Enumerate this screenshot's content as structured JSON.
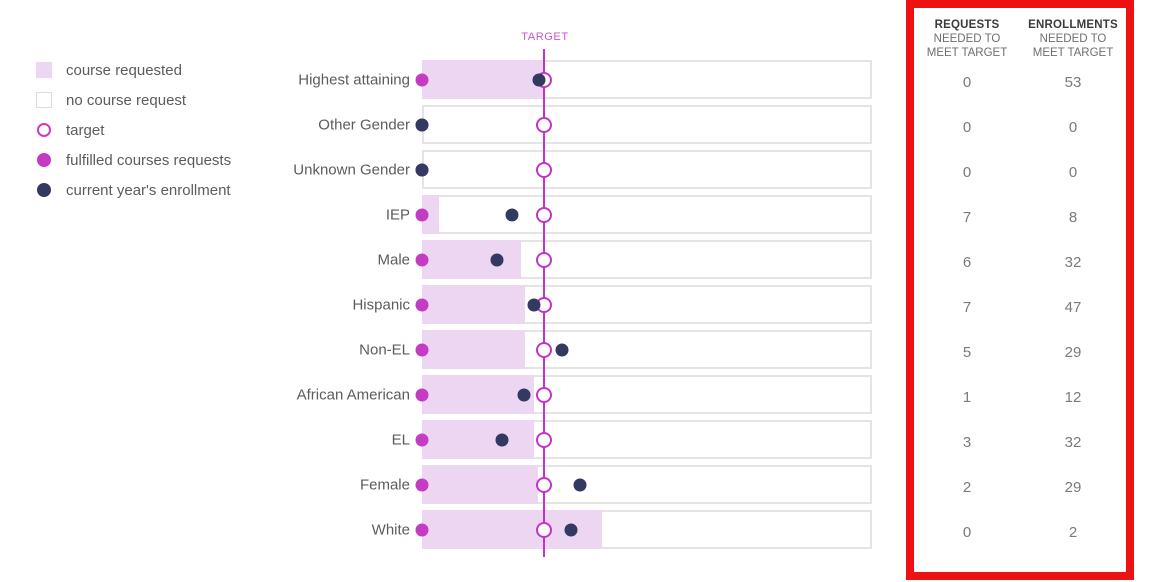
{
  "legend": {
    "items": [
      {
        "label": "course requested",
        "swatch": "square-filled"
      },
      {
        "label": "no course request",
        "swatch": "square-empty"
      },
      {
        "label": "target",
        "swatch": "circle-outline"
      },
      {
        "label": "fulfilled courses requests",
        "swatch": "circle-magenta"
      },
      {
        "label": "current year's enrollment",
        "swatch": "circle-navy"
      }
    ]
  },
  "chart_data": {
    "type": "bar",
    "orientation": "horizontal",
    "target_label": "TARGET",
    "target_pct": 27.2,
    "x_axis": {
      "min": 0,
      "max": 100,
      "unit": "percent-of-bar-width",
      "ticks_visible": false
    },
    "categories": [
      "Highest attaining",
      "Other Gender",
      "Unknown Gender",
      "IEP",
      "Male",
      "Hispanic",
      "Non-EL",
      "African American",
      "EL",
      "Female",
      "White"
    ],
    "series": [
      {
        "name": "course requested",
        "values_pct": [
          27.2,
          0,
          0,
          3.8,
          22.0,
          22.9,
          22.9,
          24.9,
          24.9,
          25.8,
          39.9
        ]
      },
      {
        "name": "fulfilled courses requests",
        "values_pct": [
          0,
          0,
          0,
          0,
          0,
          0,
          0,
          0,
          0,
          0,
          0
        ]
      },
      {
        "name": "current year's enrollment",
        "values_pct": [
          26.1,
          0,
          0,
          20.0,
          16.7,
          24.9,
          31.0,
          22.7,
          17.8,
          35.0,
          33.0
        ]
      }
    ],
    "requests_needed_to_meet_target": [
      "0",
      "0",
      "0",
      "7",
      "6",
      "7",
      "5",
      "1",
      "3",
      "2",
      "0"
    ],
    "enrollments_needed_to_meet_target": [
      "53",
      "0",
      "0",
      "8",
      "32",
      "47",
      "29",
      "12",
      "32",
      "29",
      "2"
    ],
    "legend_position": "top-left",
    "grid": false
  },
  "summary_table": {
    "columns": [
      {
        "line1": "REQUESTS",
        "line2": "NEEDED TO",
        "line3": "MEET TARGET"
      },
      {
        "line1": "ENROLLMENTS",
        "line2": "NEEDED TO",
        "line3": "MEET TARGET"
      }
    ]
  },
  "colors": {
    "bar_fill": "#edd6f2",
    "bar_border": "#e4e4e4",
    "magenta": "#c43bc4",
    "target_line": "#c433c9",
    "navy": "#333960",
    "highlight_border_red": "#ee1111",
    "label_gray": "#5c5c5c",
    "value_gray": "#7a7a7a"
  }
}
